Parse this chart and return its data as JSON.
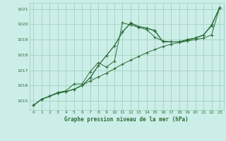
{
  "title": "",
  "xlabel": "Graphe pression niveau de la mer (hPa)",
  "bg_color": "#cceee8",
  "grid_color": "#99ccbb",
  "line_color": "#2d6e3a",
  "xlim": [
    -0.5,
    23.5
  ],
  "ylim": [
    1014.4,
    1021.4
  ],
  "yticks": [
    1015,
    1016,
    1017,
    1018,
    1019,
    1020,
    1021
  ],
  "xticks": [
    0,
    1,
    2,
    3,
    4,
    5,
    6,
    7,
    8,
    9,
    10,
    11,
    12,
    13,
    14,
    15,
    16,
    17,
    18,
    19,
    20,
    21,
    22,
    23
  ],
  "series1_x": [
    0,
    1,
    2,
    3,
    4,
    5,
    6,
    7,
    8,
    9,
    10,
    11,
    12,
    13,
    14,
    15,
    16,
    17,
    18,
    19,
    20,
    21,
    22,
    23
  ],
  "series1_y": [
    1014.7,
    1015.1,
    1015.3,
    1015.5,
    1015.6,
    1015.75,
    1016.0,
    1016.3,
    1016.55,
    1016.8,
    1017.1,
    1017.4,
    1017.65,
    1017.9,
    1018.15,
    1018.35,
    1018.55,
    1018.7,
    1018.8,
    1018.9,
    1019.0,
    1019.1,
    1019.3,
    1021.1
  ],
  "series2_x": [
    0,
    1,
    2,
    3,
    4,
    5,
    6,
    7,
    8,
    9,
    10,
    11,
    12,
    13,
    14,
    15,
    16,
    17,
    18,
    19,
    20,
    21,
    22,
    23
  ],
  "series2_y": [
    1014.7,
    1015.1,
    1015.3,
    1015.5,
    1015.6,
    1015.75,
    1016.0,
    1016.5,
    1017.3,
    1017.95,
    1018.6,
    1019.5,
    1020.1,
    1019.85,
    1019.75,
    1019.6,
    1018.85,
    1018.85,
    1018.85,
    1019.0,
    1019.1,
    1019.3,
    1019.95,
    1021.1
  ],
  "series3_x": [
    0,
    1,
    2,
    3,
    4,
    5,
    6,
    7,
    8,
    9,
    10,
    11,
    12,
    13,
    14,
    15,
    16,
    17,
    18,
    19,
    20,
    21,
    22,
    23
  ],
  "series3_y": [
    1014.7,
    1015.1,
    1015.3,
    1015.5,
    1015.6,
    1015.75,
    1016.0,
    1016.5,
    1017.3,
    1017.95,
    1018.6,
    1019.5,
    1020.05,
    1019.85,
    1019.75,
    1019.55,
    1018.85,
    1018.85,
    1018.85,
    1018.95,
    1019.1,
    1019.3,
    1019.9,
    1021.1
  ],
  "series4_x": [
    0,
    1,
    2,
    3,
    4,
    5,
    6,
    7,
    8,
    9,
    10,
    11,
    12,
    13,
    14,
    15,
    16,
    17,
    18,
    19,
    20,
    21,
    22,
    23
  ],
  "series4_y": [
    1014.7,
    1015.1,
    1015.3,
    1015.55,
    1015.65,
    1016.1,
    1016.1,
    1016.9,
    1017.5,
    1017.2,
    1017.6,
    1020.1,
    1019.95,
    1019.8,
    1019.65,
    1019.15,
    1018.9,
    1018.85,
    1018.85,
    1019.0,
    1019.1,
    1019.3,
    1019.95,
    1021.1
  ]
}
